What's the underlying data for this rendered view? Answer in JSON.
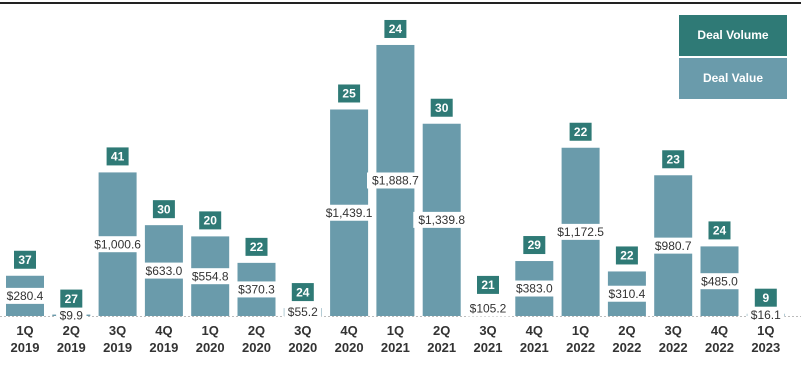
{
  "chart_data": {
    "type": "bar",
    "categories": [
      "1Q 2019",
      "2Q 2019",
      "3Q 2019",
      "4Q 2019",
      "1Q 2020",
      "2Q 2020",
      "3Q 2020",
      "4Q 2020",
      "1Q 2021",
      "2Q 2021",
      "3Q 2021",
      "4Q 2021",
      "1Q 2022",
      "2Q 2022",
      "3Q 2022",
      "4Q 2022",
      "1Q 2023"
    ],
    "series": [
      {
        "name": "Deal Volume",
        "color": "#2f7a76",
        "values": [
          37,
          27,
          41,
          30,
          20,
          22,
          24,
          25,
          24,
          30,
          21,
          29,
          22,
          22,
          23,
          24,
          9
        ]
      },
      {
        "name": "Deal Value",
        "color": "#6a9bab",
        "values": [
          280.4,
          9.9,
          1000.6,
          633.0,
          554.8,
          370.3,
          55.2,
          1439.1,
          1888.7,
          1339.8,
          105.2,
          383.0,
          1172.5,
          310.4,
          980.7,
          485.0,
          16.1
        ],
        "value_labels": [
          "$280.4",
          "$9.9",
          "$1,000.6",
          "$633.0",
          "$554.8",
          "$370.3",
          "$55.2",
          "$1,439.1",
          "$1,888.7",
          "$1,339.8",
          "$105.2",
          "$383.0",
          "$1,172.5",
          "$310.4",
          "$980.7",
          "$485.0",
          "$16.1"
        ]
      }
    ],
    "ylim": [
      0,
      2000
    ],
    "legend": "top-right"
  }
}
